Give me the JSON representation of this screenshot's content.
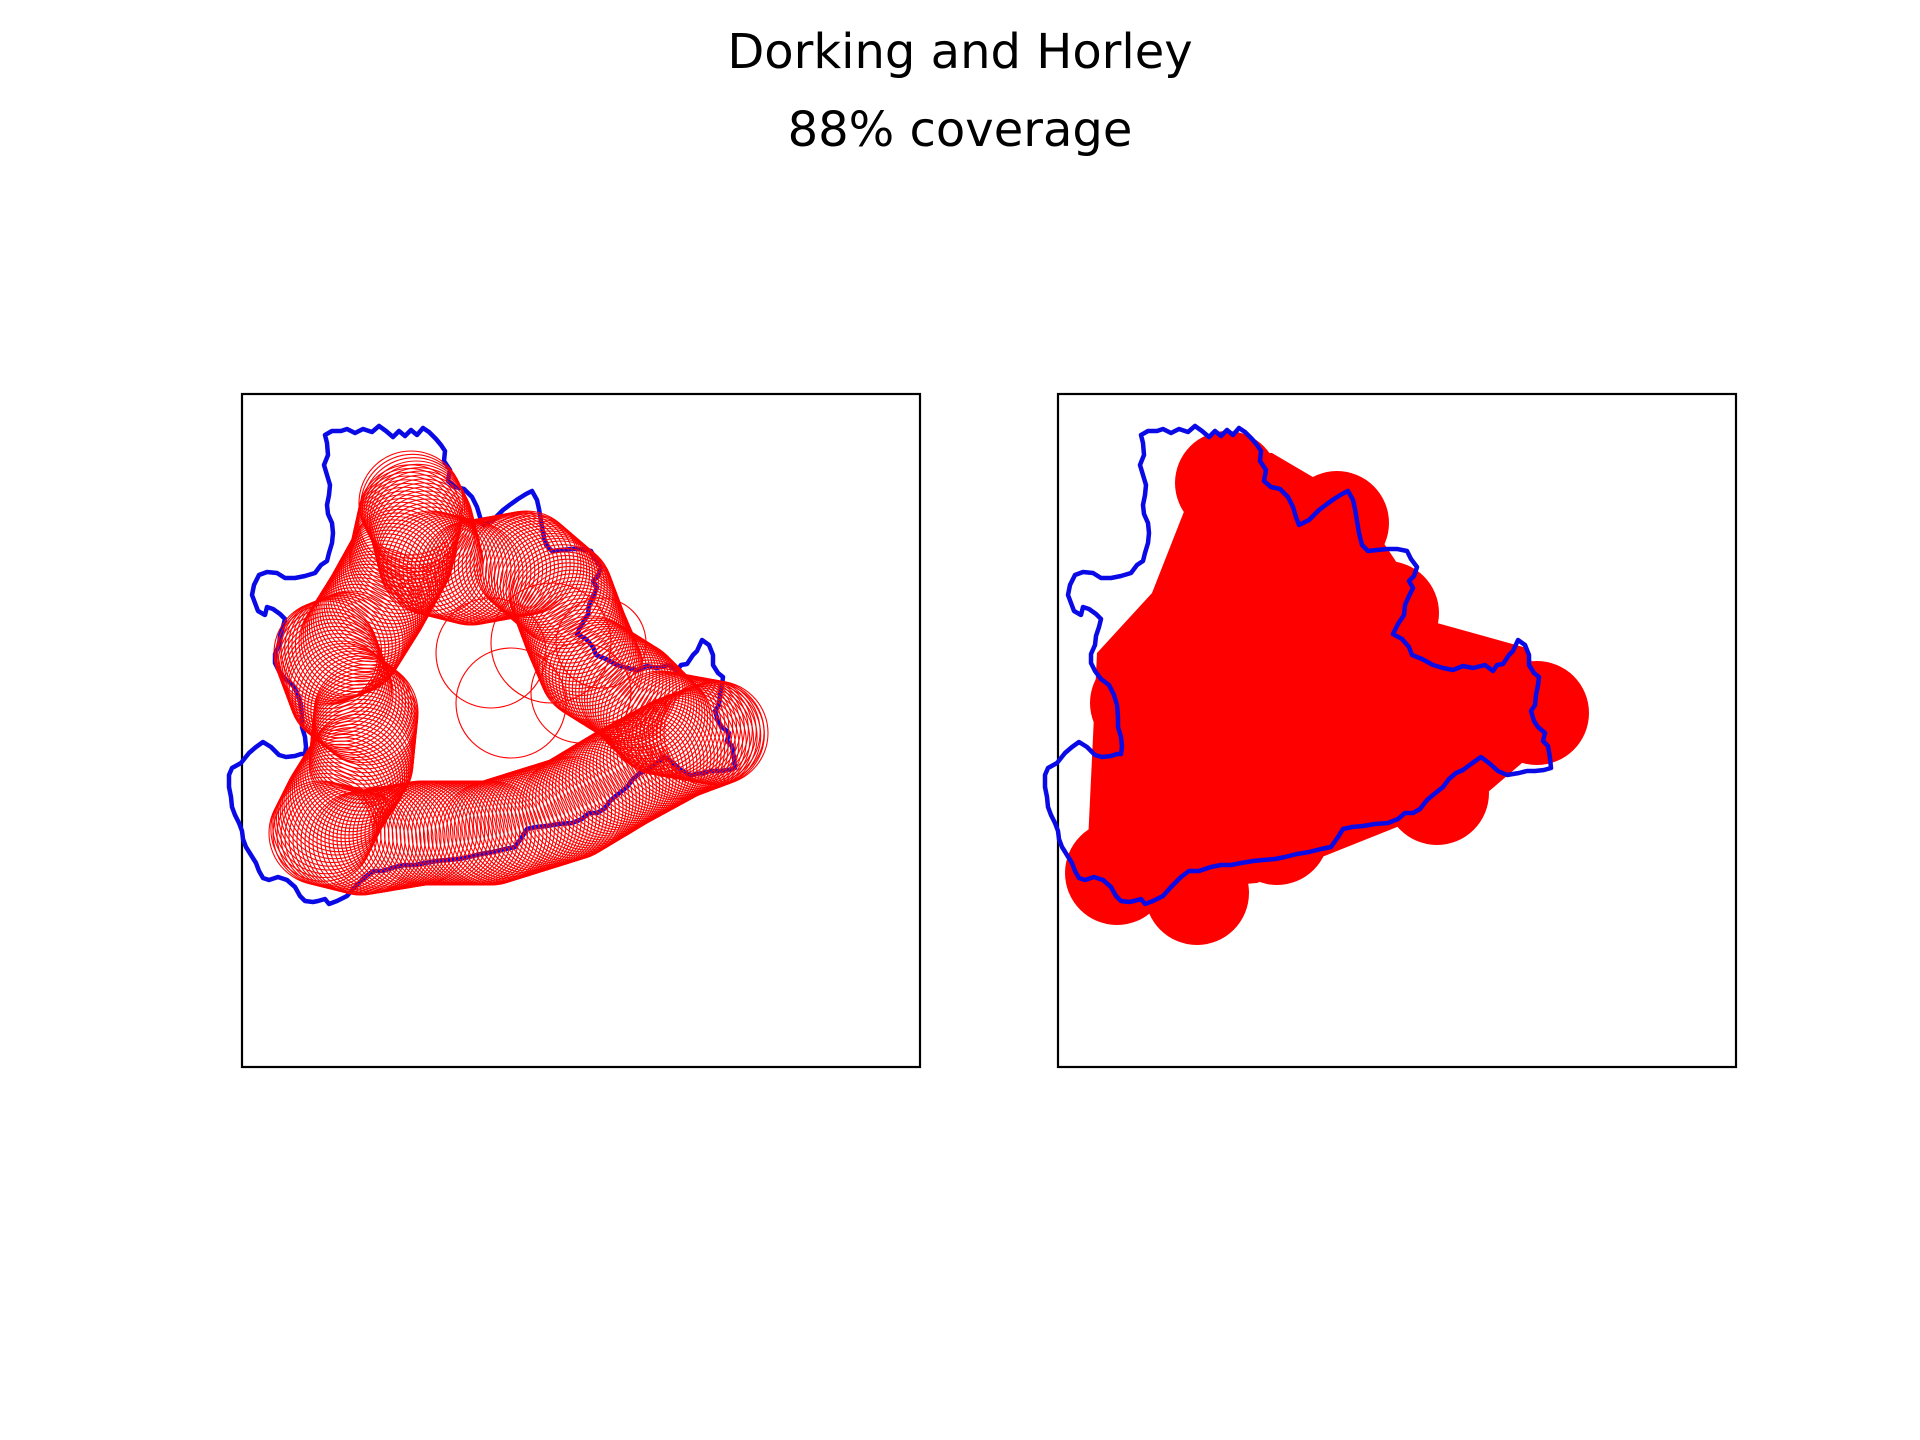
{
  "chart_data": {
    "type": "map",
    "title": "Dorking and Horley",
    "subtitle": "88% coverage",
    "coverage_percent": 88,
    "colors": {
      "boundary": "#0a0ae6",
      "coverage": "#ff0000",
      "frame": "#000000",
      "background": "#ffffff"
    },
    "panels": [
      {
        "name": "outline-circles",
        "circle_style": "outline"
      },
      {
        "name": "filled-circles",
        "circle_style": "filled"
      }
    ],
    "axes": {
      "ticks": false,
      "grid": false,
      "legend": false
    }
  }
}
